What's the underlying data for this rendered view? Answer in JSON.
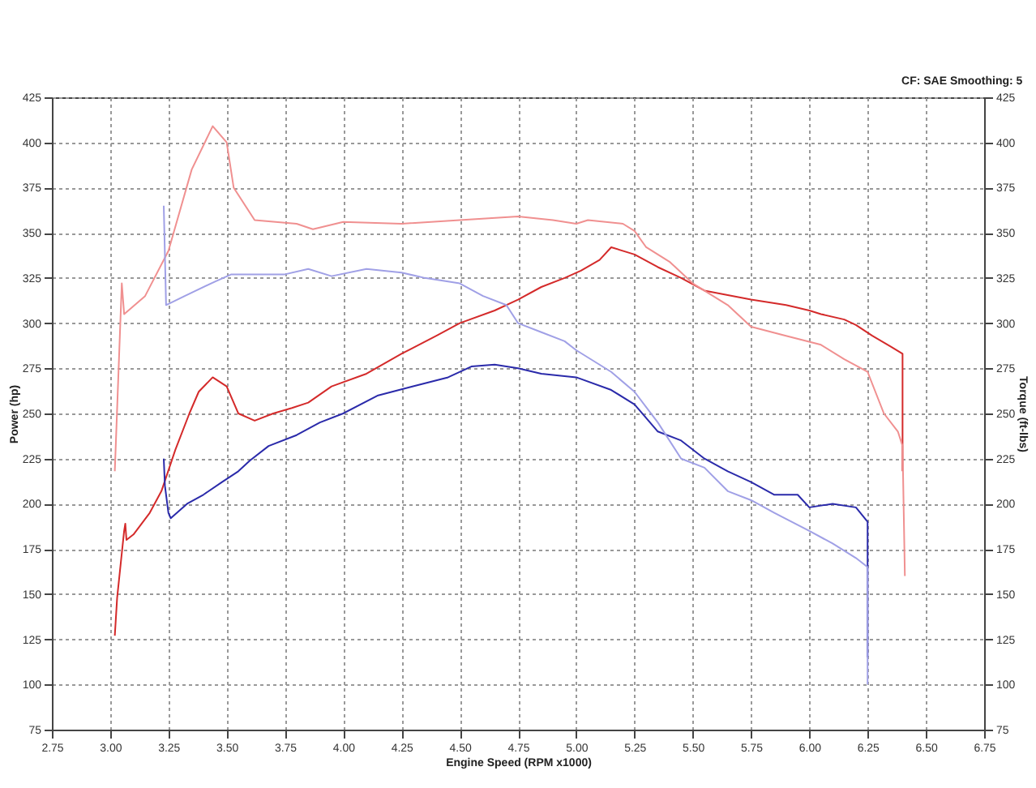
{
  "chart_data": {
    "type": "line",
    "xlabel": "Engine Speed (RPM x1000)",
    "ylabel": "Power (hp)",
    "y2label": "Torque (ft-lbs)",
    "annotations": [
      "CF: SAE  Smoothing: 5"
    ],
    "xlim": [
      2.75,
      6.75
    ],
    "xticks": [
      {
        "value": 2.75,
        "label": "2.75"
      },
      {
        "value": 3,
        "label": "3.00"
      },
      {
        "value": 3.25,
        "label": "3.25"
      },
      {
        "value": 3.5,
        "label": "3.50"
      },
      {
        "value": 3.75,
        "label": "3.75"
      },
      {
        "value": 4,
        "label": "4.00"
      },
      {
        "value": 4.25,
        "label": "4.25"
      },
      {
        "value": 4.5,
        "label": "4.50"
      },
      {
        "value": 4.75,
        "label": "4.75"
      },
      {
        "value": 5,
        "label": "5.00"
      },
      {
        "value": 5.25,
        "label": "5.25"
      },
      {
        "value": 5.5,
        "label": "5.50"
      },
      {
        "value": 5.75,
        "label": "5.75"
      },
      {
        "value": 6,
        "label": "6.00"
      },
      {
        "value": 6.25,
        "label": "6.25"
      },
      {
        "value": 6.5,
        "label": "6.50"
      },
      {
        "value": 6.75,
        "label": "6.75"
      }
    ],
    "ylim": [
      75,
      425
    ],
    "yticks": [
      75,
      100,
      125,
      150,
      175,
      200,
      225,
      250,
      275,
      300,
      325,
      350,
      375,
      400,
      425
    ],
    "y2lim": [
      75,
      425
    ],
    "y2ticks": [
      75,
      100,
      125,
      150,
      175,
      200,
      225,
      250,
      275,
      300,
      325,
      350,
      375,
      400,
      425
    ],
    "grid": true,
    "legend": false,
    "line_style": "solid",
    "marker": "none",
    "series": [
      {
        "color": "#d42a2a",
        "x": [
          3.02,
          3.03,
          3.06,
          3.065,
          3.07,
          3.1,
          3.17,
          3.22,
          3.28,
          3.34,
          3.38,
          3.44,
          3.5,
          3.55,
          3.62,
          3.7,
          3.78,
          3.85,
          3.95,
          4.1,
          4.25,
          4.4,
          4.5,
          4.65,
          4.75,
          4.85,
          4.95,
          5.02,
          5.1,
          5.15,
          5.25,
          5.35,
          5.45,
          5.55,
          5.75,
          5.9,
          6.0,
          6.05,
          6.15,
          6.2,
          6.27,
          6.35,
          6.4,
          6.4
        ],
        "values": [
          127,
          148,
          185,
          189,
          180,
          183,
          195,
          207,
          230,
          250,
          262,
          270,
          265,
          250,
          246,
          250,
          253,
          256,
          265,
          272,
          283,
          293,
          300,
          307,
          313,
          320,
          325,
          329,
          335,
          342,
          338,
          331,
          325,
          318,
          313,
          310,
          307,
          305,
          302,
          299,
          293,
          287,
          283,
          218
        ]
      },
      {
        "color": "#f09090",
        "axis": "y2",
        "x": [
          3.02,
          3.05,
          3.06,
          3.15,
          3.25,
          3.35,
          3.44,
          3.5,
          3.53,
          3.62,
          3.8,
          3.87,
          4.0,
          4.25,
          4.5,
          4.75,
          4.9,
          5.0,
          5.05,
          5.2,
          5.25,
          5.3,
          5.4,
          5.5,
          5.65,
          5.75,
          5.9,
          6.05,
          6.15,
          6.25,
          6.32,
          6.38,
          6.4,
          6.41
        ],
        "values": [
          218,
          322,
          305,
          315,
          340,
          385,
          409,
          400,
          375,
          357,
          355,
          352,
          356,
          355,
          357,
          359,
          357,
          355,
          357,
          355,
          351,
          342,
          334,
          322,
          310,
          298,
          293,
          288,
          280,
          273,
          250,
          240,
          232,
          160
        ]
      },
      {
        "color": "#2a2aaa",
        "x": [
          3.23,
          3.235,
          3.25,
          3.26,
          3.33,
          3.4,
          3.48,
          3.55,
          3.6,
          3.68,
          3.8,
          3.9,
          4.0,
          4.15,
          4.3,
          4.45,
          4.55,
          4.65,
          4.75,
          4.85,
          5.0,
          5.15,
          5.25,
          5.35,
          5.45,
          5.55,
          5.65,
          5.75,
          5.85,
          5.95,
          6.0,
          6.1,
          6.2,
          6.25,
          6.25
        ],
        "values": [
          225,
          210,
          195,
          192,
          200,
          205,
          212,
          218,
          224,
          232,
          238,
          245,
          250,
          260,
          265,
          270,
          276,
          277,
          275,
          272,
          270,
          263,
          255,
          240,
          235,
          225,
          218,
          212,
          205,
          205,
          198,
          200,
          198,
          190,
          115
        ]
      },
      {
        "color": "#a0a0e6",
        "axis": "y2",
        "x": [
          3.23,
          3.24,
          3.32,
          3.45,
          3.52,
          3.75,
          3.85,
          3.95,
          4.1,
          4.25,
          4.35,
          4.5,
          4.6,
          4.7,
          4.75,
          4.85,
          4.95,
          5.0,
          5.15,
          5.25,
          5.35,
          5.45,
          5.55,
          5.65,
          5.75,
          5.85,
          6.0,
          6.1,
          6.2,
          6.25,
          6.25
        ],
        "values": [
          365,
          310,
          315,
          323,
          327,
          327,
          330,
          326,
          330,
          328,
          325,
          322,
          315,
          310,
          300,
          295,
          290,
          285,
          273,
          262,
          245,
          225,
          220,
          207,
          202,
          195,
          185,
          178,
          170,
          165,
          100
        ]
      }
    ]
  }
}
